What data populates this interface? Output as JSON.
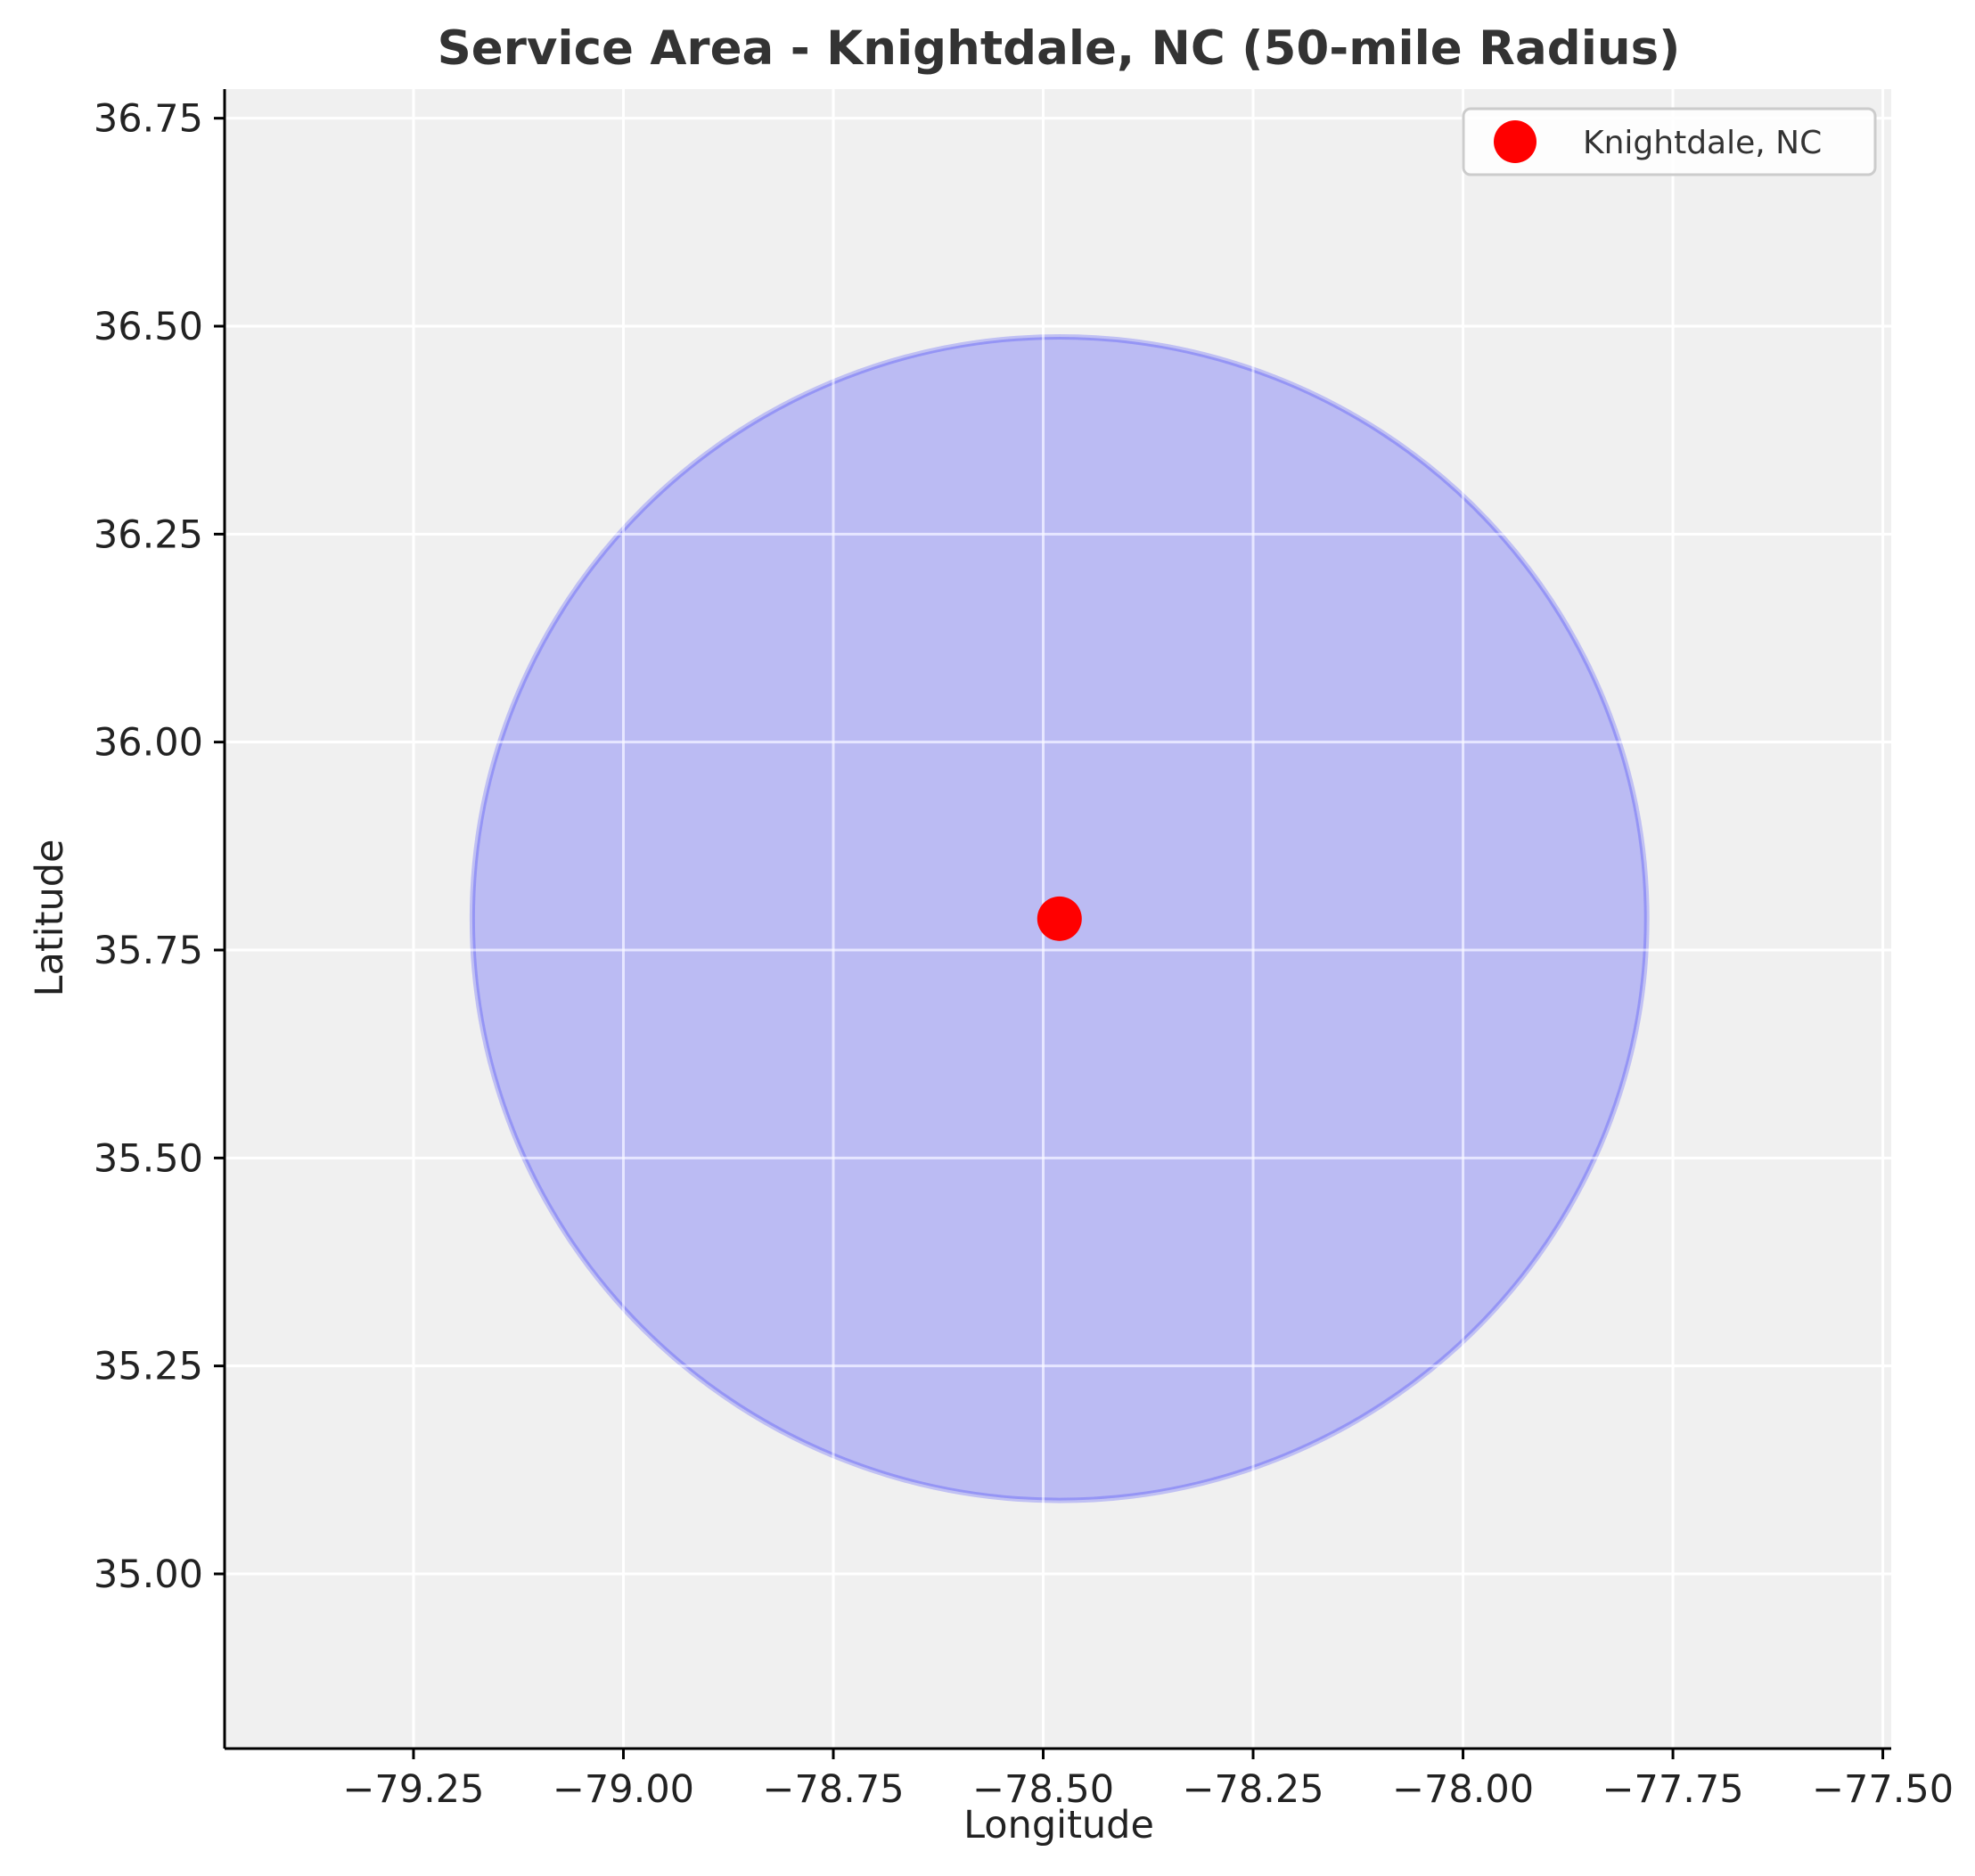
{
  "chart_data": {
    "type": "scatter",
    "title": "Service Area - Knightdale, NC (50-mile Radius)",
    "xlabel": "Longitude",
    "ylabel": "Latitude",
    "xlim": [
      -79.475,
      -77.49
    ],
    "ylim": [
      34.79,
      36.785
    ],
    "x_ticks": [
      -79.25,
      -79.0,
      -78.75,
      -78.5,
      -78.25,
      -78.0,
      -77.75,
      -77.5
    ],
    "x_tick_labels": [
      "−79.25",
      "−79.00",
      "−78.75",
      "−78.50",
      "−78.25",
      "−78.00",
      "−77.75",
      "−77.50"
    ],
    "y_ticks": [
      35.0,
      35.25,
      35.5,
      35.75,
      36.0,
      36.25,
      36.5,
      36.75
    ],
    "y_tick_labels": [
      "35.00",
      "35.25",
      "35.50",
      "35.75",
      "36.00",
      "36.25",
      "36.50",
      "36.75"
    ],
    "grid": true,
    "legend_position": "top-right",
    "points": [
      {
        "label": "Knightdale, NC",
        "x": -78.4806,
        "y": 35.7877,
        "color": "#ff0000"
      }
    ],
    "service_area": {
      "center": [
        -78.4806,
        35.7877
      ],
      "radius_deg": 0.6994,
      "fill_color": "#0000ff",
      "fill_opacity": 0.22
    },
    "series": [
      {
        "name": "Knightdale, NC",
        "color": "#ff0000"
      }
    ],
    "colors": {
      "plot_background": "#f0f0f0",
      "grid": "#ffffff",
      "axis": "#000000"
    }
  }
}
